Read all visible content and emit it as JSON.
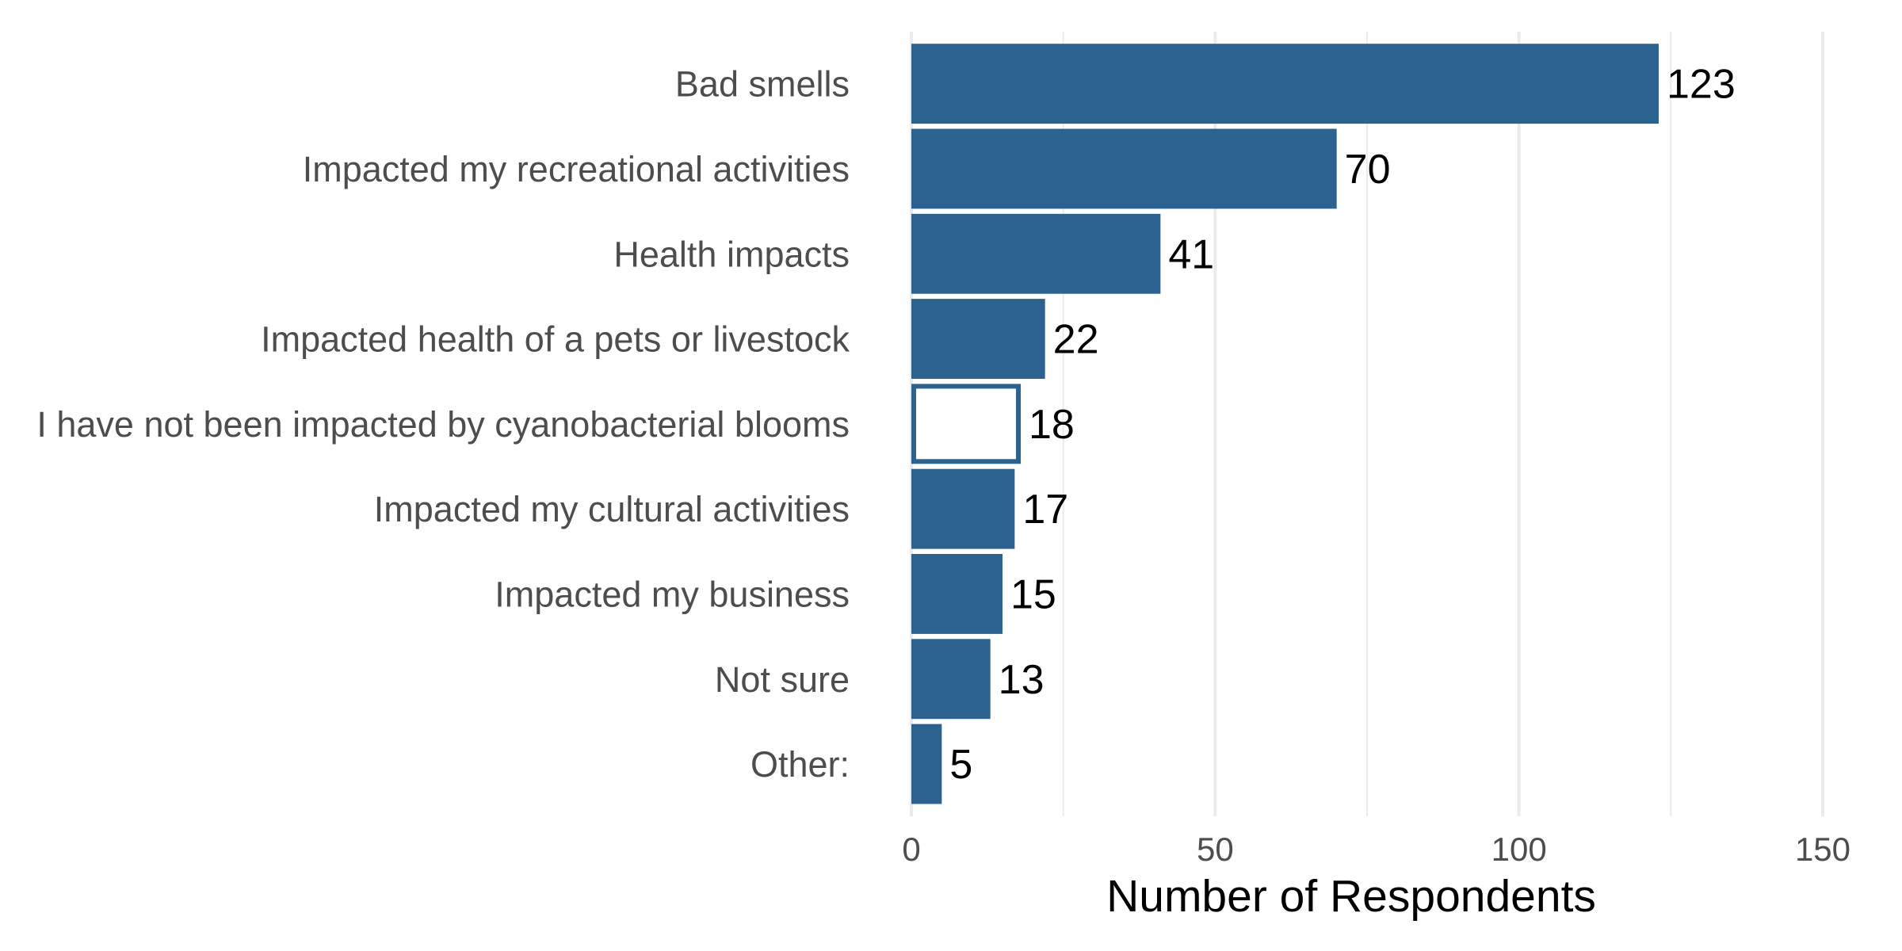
{
  "chart_data": {
    "type": "bar",
    "orientation": "horizontal",
    "categories": [
      "Bad smells",
      "Impacted my recreational activities",
      "Health impacts",
      "Impacted health of a pets or livestock",
      "I have not been impacted by cyanobacterial blooms",
      "Impacted my cultural activities",
      "Impacted my business",
      "Not sure",
      "Other:"
    ],
    "values": [
      123,
      70,
      41,
      22,
      18,
      17,
      15,
      13,
      5
    ],
    "hollow": [
      false,
      false,
      false,
      false,
      true,
      false,
      false,
      false,
      false
    ],
    "xlabel": "Number of Respondents",
    "ylabel": "",
    "xlim": [
      0,
      150
    ],
    "xticks": [
      0,
      50,
      100,
      150
    ],
    "grid": true,
    "colors": {
      "bar": "#2c628f",
      "hollow_fill": "#ffffff",
      "grid": "#ebebeb"
    }
  }
}
